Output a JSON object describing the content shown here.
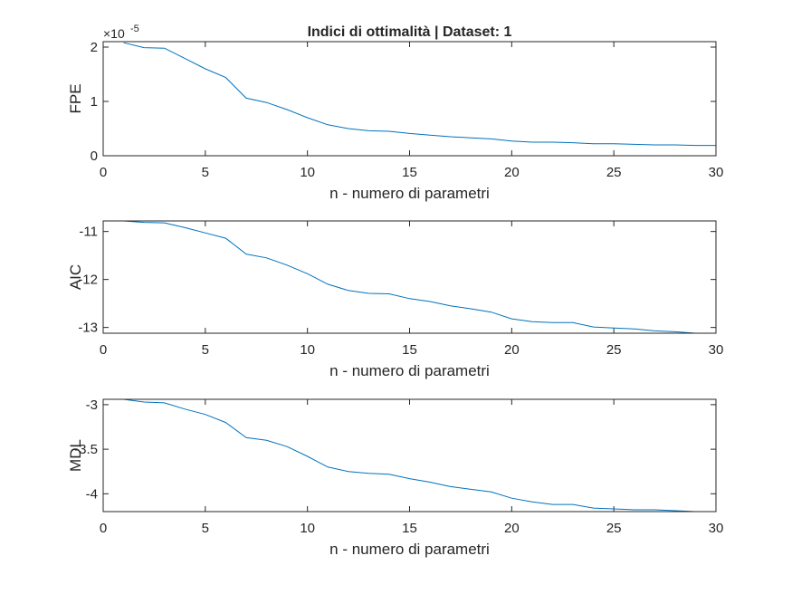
{
  "chart_data": [
    {
      "type": "line",
      "title": "Indici di ottimalità | Dataset: 1",
      "xlabel": "n - numero di parametri",
      "ylabel": "FPE",
      "y_exponent_label": "×10",
      "y_exponent_power": "-5",
      "xlim": [
        0,
        30
      ],
      "ylim": [
        0,
        2.1
      ],
      "xticks": [
        "0",
        "5",
        "10",
        "15",
        "20",
        "25",
        "30"
      ],
      "yticks": [
        "0",
        "1",
        "2"
      ],
      "ytick_values": [
        0,
        1,
        2
      ],
      "grid": false,
      "series_color": "#0072BD",
      "x": [
        1,
        2,
        3,
        4,
        5,
        6,
        7,
        8,
        9,
        10,
        11,
        12,
        13,
        14,
        15,
        16,
        17,
        18,
        19,
        20,
        21,
        22,
        23,
        24,
        25,
        26,
        27,
        28,
        29,
        30
      ],
      "values": [
        2.08,
        1.99,
        1.98,
        1.79,
        1.6,
        1.44,
        1.06,
        0.98,
        0.85,
        0.7,
        0.57,
        0.5,
        0.46,
        0.45,
        0.41,
        0.38,
        0.35,
        0.33,
        0.31,
        0.27,
        0.25,
        0.25,
        0.24,
        0.22,
        0.22,
        0.21,
        0.2,
        0.2,
        0.19,
        0.19
      ]
    },
    {
      "type": "line",
      "title": "",
      "xlabel": "n - numero di parametri",
      "ylabel": "AIC",
      "xlim": [
        0,
        30
      ],
      "ylim": [
        -13.12,
        -10.78
      ],
      "xticks": [
        "0",
        "5",
        "10",
        "15",
        "20",
        "25",
        "30"
      ],
      "yticks": [
        "-11",
        "-12",
        "-13"
      ],
      "ytick_values": [
        -11,
        -12,
        -13
      ],
      "grid": false,
      "series_color": "#0072BD",
      "x": [
        1,
        2,
        3,
        4,
        5,
        6,
        7,
        8,
        9,
        10,
        11,
        12,
        13,
        14,
        15,
        16,
        17,
        18,
        19,
        20,
        21,
        22,
        23,
        24,
        25,
        26,
        27,
        28,
        29,
        30
      ],
      "values": [
        -10.78,
        -10.81,
        -10.82,
        -10.92,
        -11.03,
        -11.14,
        -11.47,
        -11.55,
        -11.7,
        -11.88,
        -12.1,
        -12.23,
        -12.29,
        -12.3,
        -12.4,
        -12.46,
        -12.55,
        -12.61,
        -12.68,
        -12.82,
        -12.88,
        -12.9,
        -12.9,
        -12.99,
        -13.01,
        -13.03,
        -13.07,
        -13.09,
        -13.12,
        -13.12
      ]
    },
    {
      "type": "line",
      "title": "",
      "xlabel": "n - numero di parametri",
      "ylabel": "MDL",
      "xlim": [
        0,
        30
      ],
      "ylim": [
        -4.2,
        -2.94
      ],
      "xticks": [
        "0",
        "5",
        "10",
        "15",
        "20",
        "25",
        "30"
      ],
      "yticks": [
        "-3",
        "-3.5",
        "-4"
      ],
      "ytick_values": [
        -3,
        -3.5,
        -4
      ],
      "grid": false,
      "series_color": "#0072BD",
      "x": [
        1,
        2,
        3,
        4,
        5,
        6,
        7,
        8,
        9,
        10,
        11,
        12,
        13,
        14,
        15,
        16,
        17,
        18,
        19,
        20,
        21,
        22,
        23,
        24,
        25,
        26,
        27,
        28,
        29,
        30
      ],
      "values": [
        -2.94,
        -2.97,
        -2.98,
        -3.05,
        -3.11,
        -3.2,
        -3.37,
        -3.4,
        -3.47,
        -3.58,
        -3.7,
        -3.75,
        -3.77,
        -3.78,
        -3.83,
        -3.87,
        -3.92,
        -3.95,
        -3.98,
        -4.05,
        -4.09,
        -4.12,
        -4.12,
        -4.16,
        -4.17,
        -4.18,
        -4.18,
        -4.19,
        -4.2,
        -4.2
      ]
    }
  ]
}
